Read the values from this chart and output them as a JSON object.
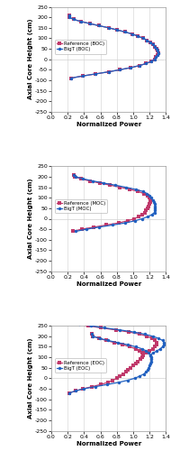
{
  "panels": [
    {
      "label": "BOC",
      "ref_label": "Reference (BOC)",
      "bigt_label": "BigT (BOC)",
      "xlim": [
        0.0,
        1.4
      ],
      "xticks": [
        0.0,
        0.2,
        0.4,
        0.6,
        0.8,
        1.0,
        1.2,
        1.4
      ],
      "ref_x": [
        0.22,
        0.22,
        0.27,
        0.36,
        0.47,
        0.58,
        0.7,
        0.8,
        0.9,
        0.99,
        1.06,
        1.12,
        1.17,
        1.21,
        1.24,
        1.27,
        1.29,
        1.3,
        1.31,
        1.3,
        1.28,
        1.26,
        1.22,
        1.16,
        1.08,
        0.97,
        0.84,
        0.7,
        0.54,
        0.38,
        0.24
      ],
      "ref_y": [
        210,
        200,
        190,
        180,
        170,
        160,
        150,
        140,
        130,
        120,
        110,
        100,
        90,
        80,
        70,
        60,
        50,
        40,
        30,
        20,
        10,
        0,
        -10,
        -20,
        -30,
        -40,
        -50,
        -60,
        -70,
        -80,
        -90
      ],
      "bigt_x": [
        0.22,
        0.22,
        0.27,
        0.36,
        0.47,
        0.58,
        0.7,
        0.8,
        0.9,
        0.99,
        1.06,
        1.12,
        1.17,
        1.21,
        1.24,
        1.27,
        1.29,
        1.3,
        1.31,
        1.3,
        1.28,
        1.26,
        1.22,
        1.16,
        1.08,
        0.97,
        0.84,
        0.7,
        0.54,
        0.38,
        0.24
      ],
      "bigt_y": [
        210,
        200,
        190,
        180,
        170,
        160,
        150,
        140,
        130,
        120,
        110,
        100,
        90,
        80,
        70,
        60,
        50,
        40,
        30,
        20,
        10,
        0,
        -10,
        -20,
        -30,
        -40,
        -50,
        -60,
        -70,
        -80,
        -90
      ],
      "ylim": [
        -250,
        250
      ],
      "yticks": [
        250,
        200,
        150,
        100,
        50,
        0,
        -50,
        -100,
        -150,
        -200,
        -250
      ],
      "legend_loc": "center left"
    },
    {
      "label": "MOC",
      "ref_label": "Reference (MOC)",
      "bigt_label": "BigT (MOC)",
      "xlim": [
        0.0,
        1.4
      ],
      "xticks": [
        0.0,
        0.2,
        0.4,
        0.6,
        0.8,
        1.0,
        1.2,
        1.4
      ],
      "ref_x": [
        0.28,
        0.29,
        0.36,
        0.47,
        0.59,
        0.72,
        0.84,
        0.96,
        1.06,
        1.13,
        1.18,
        1.2,
        1.21,
        1.21,
        1.2,
        1.19,
        1.18,
        1.16,
        1.14,
        1.11,
        1.07,
        1.01,
        0.93,
        0.82,
        0.67,
        0.52,
        0.37,
        0.26
      ],
      "ref_y": [
        210,
        200,
        190,
        180,
        170,
        160,
        150,
        140,
        130,
        120,
        110,
        100,
        90,
        80,
        70,
        60,
        50,
        40,
        30,
        20,
        10,
        0,
        -10,
        -20,
        -30,
        -40,
        -50,
        -60
      ],
      "bigt_x": [
        0.28,
        0.3,
        0.39,
        0.51,
        0.64,
        0.78,
        0.91,
        1.03,
        1.12,
        1.17,
        1.2,
        1.22,
        1.24,
        1.25,
        1.26,
        1.27,
        1.27,
        1.27,
        1.26,
        1.23,
        1.18,
        1.11,
        1.02,
        0.9,
        0.75,
        0.58,
        0.43,
        0.3
      ],
      "bigt_y": [
        210,
        200,
        190,
        180,
        170,
        160,
        150,
        140,
        130,
        120,
        110,
        100,
        90,
        80,
        70,
        60,
        50,
        40,
        30,
        20,
        10,
        0,
        -10,
        -20,
        -30,
        -40,
        -50,
        -60
      ],
      "ylim": [
        -250,
        250
      ],
      "yticks": [
        250,
        200,
        150,
        100,
        50,
        0,
        -50,
        -100,
        -150,
        -200,
        -250
      ],
      "legend_loc": "center left"
    },
    {
      "label": "EOC",
      "ref_label": "Reference (EOC)",
      "bigt_label": "BigT (EOC)",
      "xlim": [
        0.0,
        1.4
      ],
      "xticks": [
        0.0,
        0.2,
        0.4,
        0.6,
        0.8,
        1.0,
        1.2,
        1.4
      ],
      "ref_x": [
        0.5,
        0.51,
        0.58,
        0.67,
        0.77,
        0.87,
        0.96,
        1.03,
        1.08,
        1.11,
        1.12,
        1.11,
        1.09,
        1.06,
        1.03,
        1.0,
        0.97,
        0.94,
        0.91,
        0.88,
        0.84,
        0.8,
        0.75,
        0.69,
        0.6,
        0.5,
        0.39,
        0.3,
        0.22
      ],
      "ref_y": [
        210,
        200,
        190,
        180,
        170,
        160,
        150,
        140,
        130,
        120,
        110,
        100,
        90,
        80,
        70,
        60,
        50,
        40,
        30,
        20,
        10,
        0,
        -10,
        -20,
        -30,
        -40,
        -50,
        -60,
        -70
      ],
      "bigt_x": [
        0.5,
        0.51,
        0.59,
        0.69,
        0.81,
        0.93,
        1.03,
        1.11,
        1.16,
        1.19,
        1.21,
        1.22,
        1.22,
        1.22,
        1.21,
        1.2,
        1.19,
        1.18,
        1.16,
        1.13,
        1.08,
        1.02,
        0.93,
        0.82,
        0.68,
        0.54,
        0.4,
        0.3,
        0.22
      ],
      "bigt_y": [
        210,
        200,
        190,
        180,
        170,
        160,
        150,
        140,
        130,
        120,
        110,
        100,
        90,
        80,
        70,
        60,
        50,
        40,
        30,
        20,
        10,
        0,
        -10,
        -20,
        -30,
        -40,
        -50,
        -60,
        -70
      ],
      "ref_seg2_x": [
        1.12,
        1.15,
        1.2,
        1.24,
        1.27,
        1.29,
        1.29,
        1.27,
        1.23,
        1.17,
        1.08,
        0.95,
        0.79,
        0.61,
        0.45,
        0.31,
        0.22
      ],
      "ref_seg2_y": [
        110,
        120,
        130,
        140,
        150,
        160,
        170,
        180,
        190,
        200,
        210,
        220,
        230,
        240,
        250,
        260,
        270
      ],
      "bigt_seg2_x": [
        1.21,
        1.24,
        1.29,
        1.33,
        1.36,
        1.38,
        1.38,
        1.36,
        1.31,
        1.24,
        1.14,
        1.01,
        0.84,
        0.65,
        0.48,
        0.34,
        0.24
      ],
      "bigt_seg2_y": [
        110,
        120,
        130,
        140,
        150,
        160,
        170,
        180,
        190,
        200,
        210,
        220,
        230,
        240,
        250,
        260,
        270
      ],
      "ylim": [
        -250,
        250
      ],
      "yticks": [
        250,
        200,
        150,
        100,
        50,
        0,
        -50,
        -100,
        -150,
        -200,
        -250
      ],
      "legend_loc": "center left"
    }
  ],
  "ref_color": "#c0396b",
  "bigt_color": "#2060c0",
  "marker_ref": "s",
  "marker_bigt": "o",
  "marker_size": 2.5,
  "linewidth": 0.9,
  "xlabel": "Normalized Power",
  "ylabel": "Axial Core Height (cm)",
  "background_color": "#ffffff",
  "grid_color": "#d0d0d0",
  "tick_fontsize": 4.5,
  "label_fontsize": 5.0,
  "legend_fontsize": 4.0
}
